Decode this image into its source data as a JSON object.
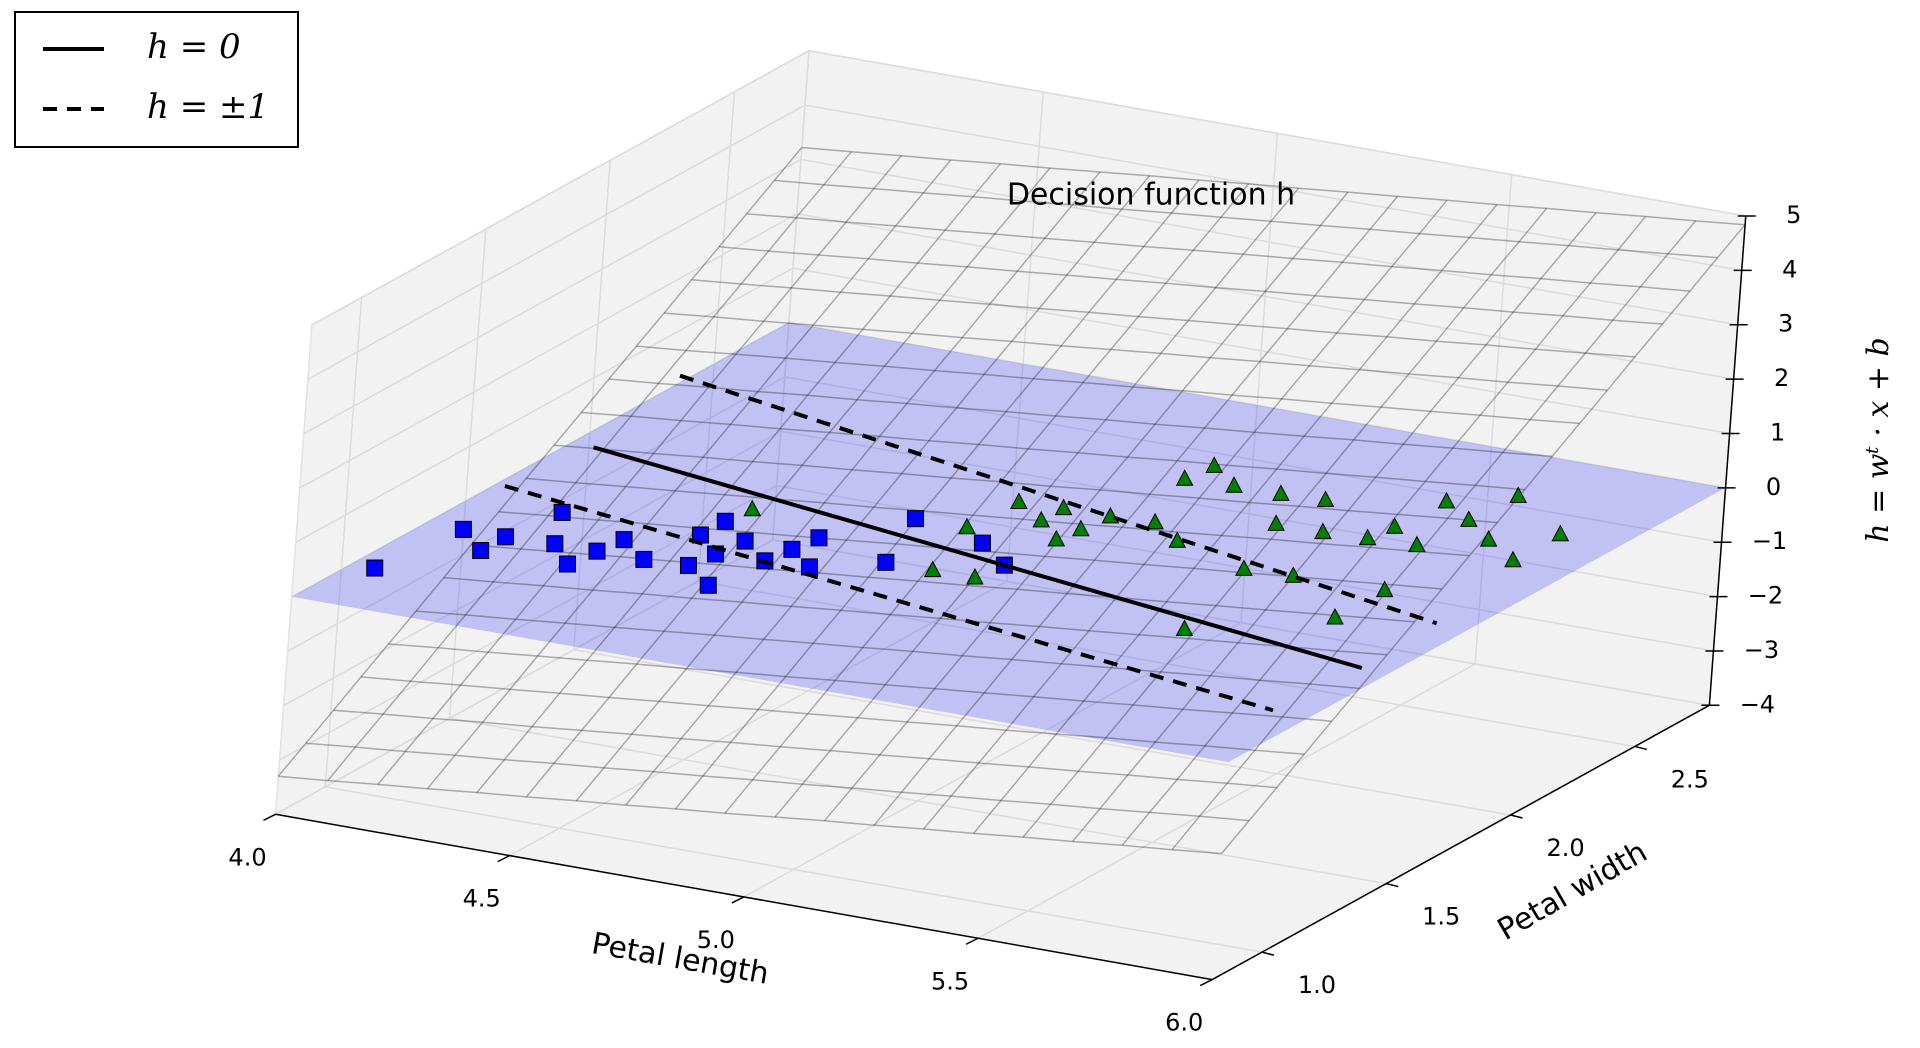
{
  "chart_data": {
    "type": "scatter3d",
    "title": "Decision function h",
    "xlabel": "Petal length",
    "ylabel": "Petal width",
    "zlabel": "h = wᵗ · x + b",
    "xlim": [
      4,
      6
    ],
    "ylim": [
      0.8,
      2.8
    ],
    "zlim": [
      -4,
      5
    ],
    "xticks": [
      {
        "value": 4,
        "label": "4.0"
      },
      4.5,
      {
        "value": 5,
        "label": "5.0"
      },
      5.5,
      {
        "value": 6,
        "label": "6.0"
      }
    ],
    "yticks": [
      {
        "value": 1,
        "label": "1.0"
      },
      1.5,
      {
        "value": 2,
        "label": "2.0"
      },
      2.5
    ],
    "zticks": [
      {
        "value": -4,
        "label": "−4"
      },
      {
        "value": -3,
        "label": "−3"
      },
      {
        "value": -2,
        "label": "−2"
      },
      {
        "value": -1,
        "label": "−1"
      },
      0,
      1,
      2,
      3,
      4,
      5
    ],
    "grid": true,
    "legend": "upper left",
    "plane": {
      "z": 0,
      "color": "#0000ff",
      "opacity": 0.2
    },
    "wireframe": {
      "color": "#000000",
      "opacity": 0.3,
      "x": [
        4,
        4.105,
        4.211,
        4.316,
        4.421,
        4.526,
        4.632,
        4.737,
        4.842,
        4.947,
        5.053,
        5.158,
        5.263,
        5.368,
        5.474,
        5.579,
        5.684,
        5.789,
        5.895,
        6
      ],
      "y": [
        0.8,
        0.905,
        1.011,
        1.116,
        1.221,
        1.326,
        1.432,
        1.537,
        1.642,
        1.747,
        1.853,
        1.958,
        2.063,
        2.168,
        2.274,
        2.379,
        2.484,
        2.589,
        2.695,
        2.8
      ],
      "z": [
        [
          -3.3,
          -3.22,
          -3.13,
          -3.05,
          -2.96,
          -2.88,
          -2.79,
          -2.71,
          -2.62,
          -2.54,
          -2.45,
          -2.36,
          -2.28,
          -2.19,
          -2.11,
          -2.02,
          -1.94,
          -1.85,
          -1.77,
          -1.68
        ],
        [
          -2.96,
          -2.87,
          -2.79,
          -2.7,
          -2.62,
          -2.53,
          -2.45,
          -2.36,
          -2.28,
          -2.19,
          -2.11,
          -2.02,
          -1.94,
          -1.85,
          -1.77,
          -1.68,
          -1.6,
          -1.51,
          -1.42,
          -1.34
        ],
        [
          -2.62,
          -2.53,
          -2.45,
          -2.36,
          -2.28,
          -2.19,
          -2.1,
          -2.02,
          -1.93,
          -1.85,
          -1.76,
          -1.68,
          -1.59,
          -1.51,
          -1.42,
          -1.34,
          -1.25,
          -1.17,
          -1.08,
          -1.0
        ],
        [
          -2.27,
          -2.19,
          -2.1,
          -2.02,
          -1.93,
          -1.85,
          -1.76,
          -1.68,
          -1.59,
          -1.51,
          -1.42,
          -1.34,
          -1.25,
          -1.17,
          -1.08,
          -0.99,
          -0.91,
          -0.82,
          -0.74,
          -0.65
        ],
        [
          -1.93,
          -1.84,
          -1.76,
          -1.67,
          -1.59,
          -1.5,
          -1.42,
          -1.33,
          -1.25,
          -1.16,
          -1.08,
          -0.99,
          -0.91,
          -0.82,
          -0.74,
          -0.65,
          -0.57,
          -0.48,
          -0.39,
          -0.31
        ],
        [
          -1.59,
          -1.5,
          -1.42,
          -1.33,
          -1.25,
          -1.16,
          -1.07,
          -0.99,
          -0.9,
          -0.82,
          -0.73,
          -0.65,
          -0.56,
          -0.48,
          -0.39,
          -0.31,
          -0.22,
          -0.14,
          -0.05,
          0.03
        ],
        [
          -1.24,
          -1.16,
          -1.07,
          -0.99,
          -0.9,
          -0.82,
          -0.73,
          -0.65,
          -0.56,
          -0.48,
          -0.39,
          -0.31,
          -0.22,
          -0.14,
          -0.05,
          0.04,
          0.12,
          0.21,
          0.29,
          0.38
        ],
        [
          -0.9,
          -0.82,
          -0.73,
          -0.64,
          -0.56,
          -0.47,
          -0.39,
          -0.3,
          -0.22,
          -0.13,
          -0.05,
          0.04,
          0.12,
          0.21,
          0.29,
          0.38,
          0.46,
          0.55,
          0.64,
          0.72
        ],
        [
          -0.56,
          -0.47,
          -0.39,
          -0.3,
          -0.22,
          -0.13,
          -0.05,
          0.04,
          0.13,
          0.21,
          0.3,
          0.38,
          0.47,
          0.55,
          0.64,
          0.72,
          0.81,
          0.89,
          0.98,
          1.06
        ],
        [
          -0.21,
          -0.13,
          -0.04,
          0.04,
          0.13,
          0.21,
          0.3,
          0.38,
          0.47,
          0.55,
          0.64,
          0.72,
          0.81,
          0.89,
          0.98,
          1.07,
          1.15,
          1.24,
          1.32,
          1.41
        ],
        [
          0.13,
          0.22,
          0.3,
          0.39,
          0.47,
          0.56,
          0.64,
          0.73,
          0.81,
          0.9,
          0.98,
          1.07,
          1.15,
          1.24,
          1.32,
          1.41,
          1.49,
          1.58,
          1.67,
          1.75
        ],
        [
          0.47,
          0.56,
          0.64,
          0.73,
          0.81,
          0.9,
          0.99,
          1.07,
          1.16,
          1.24,
          1.33,
          1.41,
          1.5,
          1.58,
          1.67,
          1.75,
          1.84,
          1.92,
          2.01,
          2.09
        ],
        [
          0.82,
          0.9,
          0.99,
          1.07,
          1.16,
          1.24,
          1.33,
          1.41,
          1.5,
          1.58,
          1.67,
          1.75,
          1.84,
          1.92,
          2.01,
          2.1,
          2.18,
          2.27,
          2.35,
          2.44
        ],
        [
          1.16,
          1.24,
          1.33,
          1.42,
          1.5,
          1.59,
          1.67,
          1.76,
          1.84,
          1.93,
          2.01,
          2.1,
          2.18,
          2.27,
          2.35,
          2.44,
          2.52,
          2.61,
          2.69,
          2.78
        ],
        [
          1.5,
          1.59,
          1.67,
          1.76,
          1.84,
          1.93,
          2.01,
          2.1,
          2.18,
          2.27,
          2.36,
          2.44,
          2.53,
          2.61,
          2.7,
          2.78,
          2.87,
          2.95,
          3.04,
          3.12
        ],
        [
          1.85,
          1.93,
          2.02,
          2.1,
          2.19,
          2.27,
          2.36,
          2.44,
          2.53,
          2.61,
          2.7,
          2.78,
          2.87,
          2.95,
          3.04,
          3.12,
          3.21,
          3.29,
          3.38,
          3.47
        ],
        [
          2.19,
          2.27,
          2.36,
          2.45,
          2.53,
          2.62,
          2.7,
          2.79,
          2.87,
          2.96,
          3.04,
          3.13,
          3.21,
          3.3,
          3.38,
          3.47,
          3.55,
          3.64,
          3.72,
          3.81
        ],
        [
          2.53,
          2.62,
          2.7,
          2.79,
          2.87,
          2.96,
          3.04,
          3.13,
          3.21,
          3.3,
          3.39,
          3.47,
          3.56,
          3.64,
          3.73,
          3.81,
          3.9,
          3.98,
          4.07,
          4.15
        ],
        [
          2.88,
          2.96,
          3.05,
          3.13,
          3.22,
          3.3,
          3.39,
          3.47,
          3.56,
          3.64,
          3.73,
          3.81,
          3.9,
          3.98,
          4.07,
          4.15,
          4.24,
          4.32,
          4.41,
          4.5
        ],
        [
          3.22,
          3.3,
          3.39,
          3.47,
          3.56,
          3.64,
          3.73,
          3.82,
          3.9,
          3.99,
          4.07,
          4.16,
          4.24,
          4.33,
          4.41,
          4.5,
          4.58,
          4.67,
          4.75,
          4.84
        ]
      ]
    },
    "series": [
      {
        "marker": "square",
        "color": "#0000ff",
        "z": 0,
        "x": [
          4.05,
          4.08,
          4.17,
          4.17,
          4.27,
          4.19,
          4.35,
          4.36,
          4.37,
          4.46,
          4.55,
          4.48,
          4.64,
          4.56,
          4.48,
          4.57,
          4.66,
          4.67,
          4.75,
          4.68,
          4.86,
          4.78,
          4.96,
          5.06
        ],
        "y": [
          1.04,
          1.34,
          1.24,
          1.34,
          1.35,
          1.53,
          1.25,
          1.35,
          1.44,
          1.35,
          1.36,
          1.54,
          1.27,
          1.45,
          1.64,
          1.55,
          1.46,
          1.55,
          1.47,
          1.64,
          1.57,
          1.84,
          1.77,
          1.67
        ]
      },
      {
        "marker": "triangle",
        "color": "#008000",
        "z": 0,
        "x": [
          4.49,
          4.96,
          4.89,
          5.05,
          4.9,
          4.99,
          5.07,
          4.99,
          5.08,
          5.09,
          5.18,
          5.27,
          5.54,
          5.1,
          5.11,
          5.2,
          5.46,
          5.38,
          5.3,
          5.56,
          5.48,
          5.39,
          5.75,
          5.57,
          5.75,
          5.58,
          5.67,
          5.59,
          5.68,
          5.77,
          5.87,
          5.69,
          5.87
        ],
        "y": [
          1.73,
          1.57,
          1.84,
          1.57,
          2.03,
          1.95,
          1.86,
          2.04,
          1.94,
          2.04,
          2.05,
          1.97,
          1.49,
          2.32,
          2.42,
          2.33,
          1.88,
          2.16,
          2.33,
          1.89,
          2.16,
          2.34,
          1.7,
          2.17,
          1.9,
          2.26,
          2.18,
          2.45,
          2.37,
          2.28,
          2.19,
          2.55,
          2.38
        ]
      }
    ],
    "lines": [
      {
        "name": "h = 0",
        "style": "solid",
        "color": "#000000",
        "z": 0,
        "segments": [
          {
            "x": [
              4.05,
              5.94
            ],
            "y": [
              1.92,
              1.45
            ]
          }
        ]
      },
      {
        "name": "h = ±1",
        "style": "dashed",
        "color": "#000000",
        "z": 0,
        "segments": [
          {
            "x": [
              3.98,
              5.93
            ],
            "y": [
              2.4,
              1.77
            ]
          },
          {
            "x": [
              4.02,
              5.92
            ],
            "y": [
              1.62,
              1.13
            ]
          }
        ]
      }
    ]
  }
}
